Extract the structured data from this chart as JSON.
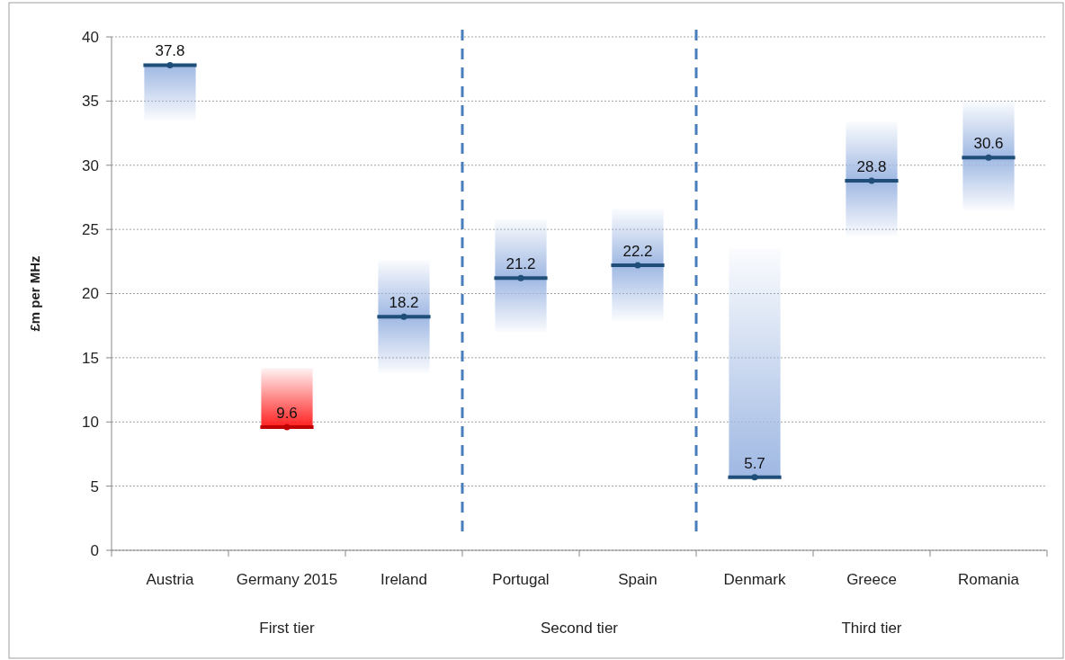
{
  "chart_data": {
    "type": "bar",
    "ylabel": "£m per MHz",
    "categories": [
      "Austria",
      "Germany 2015",
      "Ireland",
      "Portugal",
      "Spain",
      "Denmark",
      "Greece",
      "Romania"
    ],
    "series": [
      {
        "values": [
          4.3,
          4.6,
          8.8,
          8.8,
          8.7,
          17.8,
          8.9,
          8.5
        ],
        "base": [
          33.5,
          9.6,
          13.8,
          17,
          17.9,
          5.7,
          24.5,
          26.5
        ],
        "colors": [
          "#9fb8e3",
          "#ff2020",
          "#9fb8e3",
          "#9fb8e3",
          "#9fb8e3",
          "#9fb8e3",
          "#9fb8e3",
          "#9fb8e3"
        ]
      },
      {
        "type": "scatter",
        "values": [
          37.8,
          9.6,
          18.2,
          21.2,
          22.2,
          5.7,
          28.8,
          30.6
        ],
        "value_labels": [
          "37.8",
          "9.6",
          "18.2",
          "21.2",
          "22.2",
          "5.7",
          "28.8",
          "30.6"
        ],
        "colors": [
          "#1f4e79",
          "#c00000",
          "#1f4e79",
          "#1f4e79",
          "#1f4e79",
          "#1f4e79",
          "#1f4e79",
          "#1f4e79"
        ]
      }
    ],
    "ylim": [
      0,
      40
    ],
    "yticks": [
      0,
      5,
      10,
      15,
      20,
      25,
      30,
      35,
      40
    ],
    "grid": "y",
    "annotations": [
      "First tier",
      "Second tier",
      "Third tier"
    ]
  }
}
